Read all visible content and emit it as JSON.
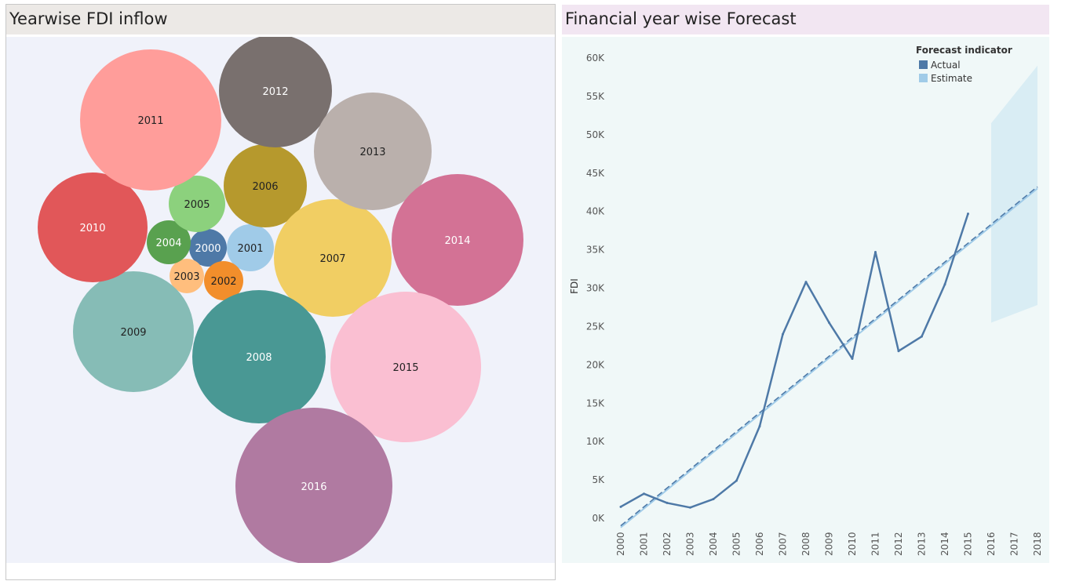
{
  "bubble_panel": {
    "title": "Yearwise FDI inflow"
  },
  "forecast_panel": {
    "title": "Financial year wise Forecast"
  },
  "chart_data": [
    {
      "type": "bubble",
      "title": "Yearwise FDI inflow",
      "bubbles": [
        {
          "label": "2000",
          "color": "#4e79a7",
          "text_color": "#ffffff"
        },
        {
          "label": "2001",
          "color": "#a0cbe8",
          "text_color": "#222222"
        },
        {
          "label": "2002",
          "color": "#f28e2b",
          "text_color": "#222222"
        },
        {
          "label": "2003",
          "color": "#ffbe7d",
          "text_color": "#222222"
        },
        {
          "label": "2004",
          "color": "#59a14f",
          "text_color": "#ffffff"
        },
        {
          "label": "2005",
          "color": "#8cd17d",
          "text_color": "#222222"
        },
        {
          "label": "2006",
          "color": "#b6992d",
          "text_color": "#222222"
        },
        {
          "label": "2007",
          "color": "#f1ce63",
          "text_color": "#222222"
        },
        {
          "label": "2008",
          "color": "#499894",
          "text_color": "#ffffff"
        },
        {
          "label": "2009",
          "color": "#86bcb6",
          "text_color": "#222222"
        },
        {
          "label": "2010",
          "color": "#e15759",
          "text_color": "#ffffff"
        },
        {
          "label": "2011",
          "color": "#ff9d9a",
          "text_color": "#222222"
        },
        {
          "label": "2012",
          "color": "#79706e",
          "text_color": "#ffffff"
        },
        {
          "label": "2013",
          "color": "#bab0ac",
          "text_color": "#222222"
        },
        {
          "label": "2014",
          "color": "#d37295",
          "text_color": "#ffffff"
        },
        {
          "label": "2015",
          "color": "#fabfd2",
          "text_color": "#222222"
        },
        {
          "label": "2016",
          "color": "#b07aa1",
          "text_color": "#ffffff"
        }
      ]
    },
    {
      "type": "line",
      "title": "Financial year wise Forecast",
      "ylabel": "FDI",
      "xlabel": "",
      "x_ticks": [
        "2000",
        "2001",
        "2002",
        "2003",
        "2004",
        "2005",
        "2006",
        "2007",
        "2008",
        "2009",
        "2010",
        "2011",
        "2012",
        "2013",
        "2014",
        "2015",
        "2016",
        "2017",
        "2018"
      ],
      "y_ticks": [
        "0K",
        "5K",
        "10K",
        "15K",
        "20K",
        "25K",
        "30K",
        "35K",
        "40K",
        "45K",
        "50K",
        "55K",
        "60K"
      ],
      "ylim": [
        0,
        60000
      ],
      "legend": {
        "title": "Forecast indicator",
        "placement": "top-right",
        "entries": [
          {
            "name": "Actual",
            "color": "#4e79a7"
          },
          {
            "name": "Estimate",
            "color": "#a0cbe8"
          }
        ]
      },
      "series": [
        {
          "name": "Actual",
          "color": "#4e79a7",
          "x": [
            "2000",
            "2001",
            "2002",
            "2003",
            "2004",
            "2005",
            "2006",
            "2007",
            "2008",
            "2009",
            "2010",
            "2011",
            "2012",
            "2013",
            "2014",
            "2015"
          ],
          "values": [
            1500,
            3200,
            2000,
            1400,
            2500,
            4900,
            12000,
            24000,
            30800,
            25500,
            20800,
            34700,
            21800,
            23700,
            30500,
            39700
          ]
        }
      ],
      "trend_lines": [
        {
          "style": "dashed",
          "color": "#4e79a7",
          "x": [
            "2000",
            "2018"
          ],
          "values": [
            -1000,
            43200
          ]
        },
        {
          "style": "solid",
          "color": "#a0cbe8",
          "x": [
            "2000",
            "2018"
          ],
          "values": [
            -1200,
            43000
          ]
        }
      ],
      "forecast_band": {
        "color": "#d6ebf3",
        "x": [
          "2016",
          "2018"
        ],
        "upper": [
          51500,
          59000
        ],
        "lower": [
          25500,
          27800
        ]
      }
    }
  ]
}
